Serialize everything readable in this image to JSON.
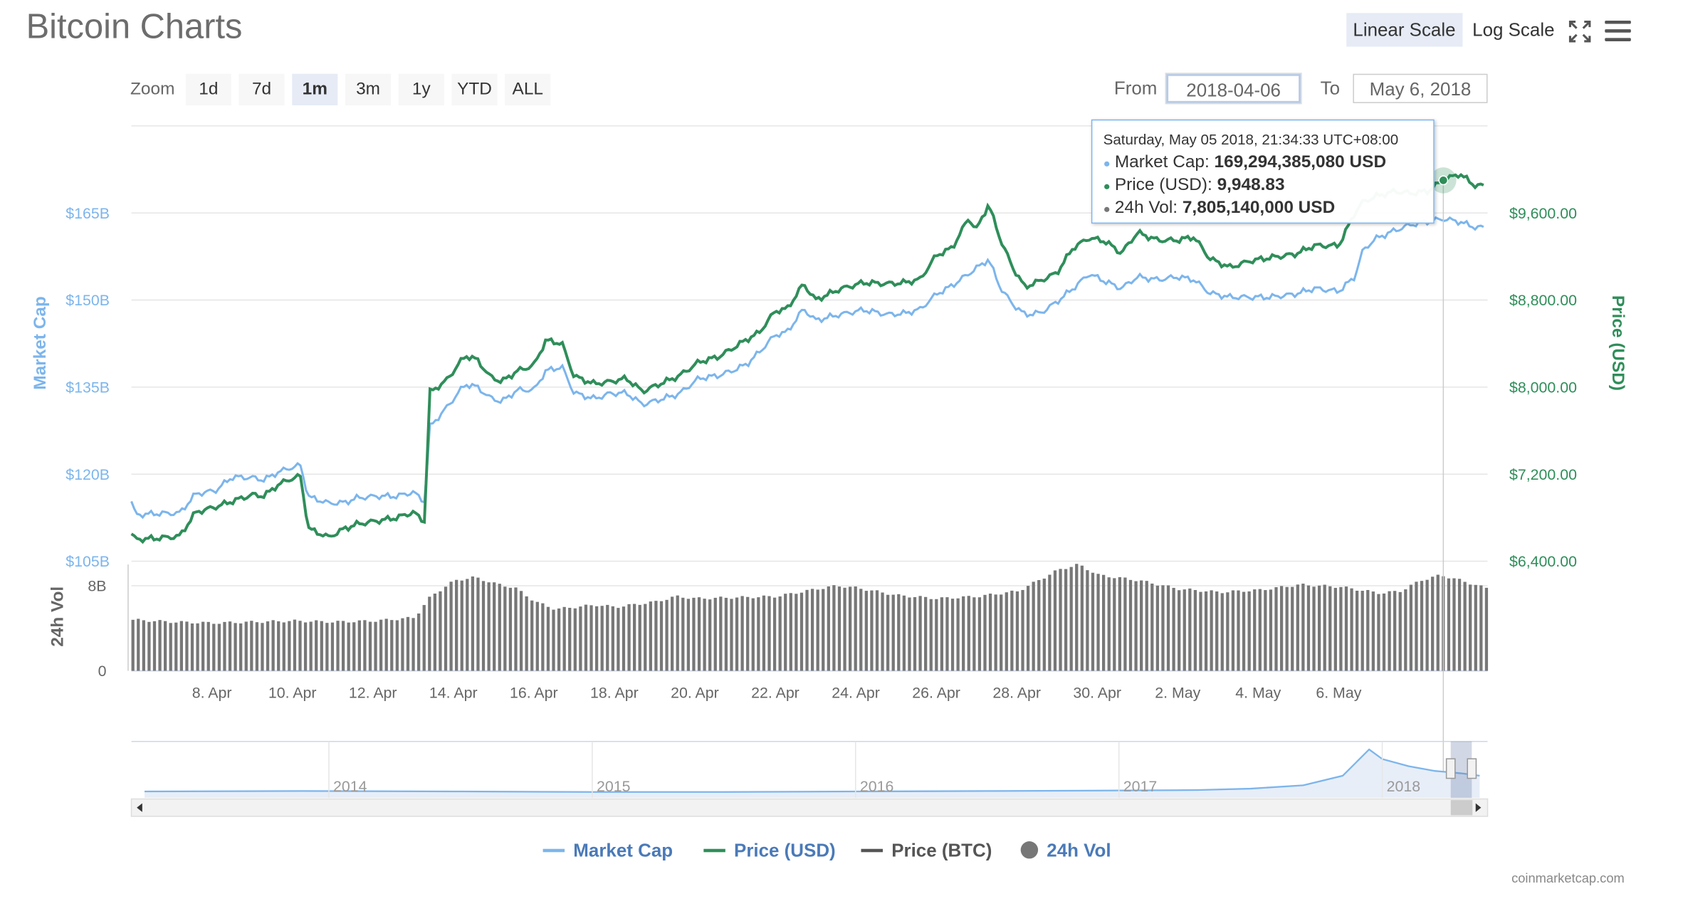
{
  "header": {
    "title": "Bitcoin Charts",
    "linear_scale_label": "Linear Scale",
    "log_scale_label": "Log Scale",
    "fullscreen_icon": "fullscreen-icon",
    "menu_icon": "hamburger-menu-icon"
  },
  "zoom": {
    "label": "Zoom",
    "buttons": [
      "1d",
      "7d",
      "1m",
      "3m",
      "1y",
      "YTD",
      "ALL"
    ],
    "active": "1m"
  },
  "range": {
    "from_label": "From",
    "from_value": "2018-04-06",
    "to_label": "To",
    "to_value": "May 6, 2018"
  },
  "tooltip": {
    "header": "Saturday, May 05 2018, 21:34:33 UTC+08:00",
    "rows": [
      {
        "label": "Market Cap: ",
        "value": "169,294,385,080 USD",
        "color": "#7cb5ec"
      },
      {
        "label": "Price (USD): ",
        "value": "9,948.83",
        "color": "#2f8e5a"
      },
      {
        "label": "24h Vol: ",
        "value": "7,805,140,000 USD",
        "color": "#777777"
      }
    ]
  },
  "legend": {
    "items": [
      {
        "name": "Market Cap",
        "color": "#7cb5ec"
      },
      {
        "name": "Price (USD)",
        "color": "#2f8e5a"
      },
      {
        "name": "Price (BTC)",
        "color": "#555555"
      },
      {
        "name": "24h Vol",
        "color": "#777777"
      }
    ]
  },
  "credit": "coinmarketcap.com",
  "colors": {
    "market_cap": "#7cb5ec",
    "price_usd": "#2f8e5a",
    "volume": "#777777",
    "navigator_fill": "#e8eef8"
  },
  "chart_data": {
    "type": "line",
    "x_start": "2018-04-06",
    "x_end": "2018-05-06",
    "x_tick_labels": [
      "8. Apr",
      "10. Apr",
      "12. Apr",
      "14. Apr",
      "16. Apr",
      "18. Apr",
      "20. Apr",
      "22. Apr",
      "24. Apr",
      "26. Apr",
      "28. Apr",
      "30. Apr",
      "2. May",
      "4. May",
      "6. May"
    ],
    "y_left": {
      "label": "Market Cap",
      "tick_labels": [
        "$105B",
        "$120B",
        "$135B",
        "$150B",
        "$165B"
      ],
      "ticks": [
        105,
        120,
        135,
        150,
        165
      ],
      "range": [
        105,
        180
      ]
    },
    "y_right": {
      "label": "Price (USD)",
      "tick_labels": [
        "$6,400.00",
        "$7,200.00",
        "$8,000.00",
        "$8,800.00",
        "$9,600.00"
      ],
      "ticks": [
        6400,
        7200,
        8000,
        8800,
        9600
      ],
      "range": [
        6400,
        10400
      ]
    },
    "volume_axis": {
      "label": "24h Vol",
      "tick_labels": [
        "0",
        "8B"
      ],
      "ticks": [
        0,
        8
      ],
      "range": [
        0,
        10
      ]
    },
    "series": [
      {
        "name": "Market Cap",
        "unit": "billion USD",
        "points": [
          [
            0,
            115.3
          ],
          [
            0.1,
            113
          ],
          [
            0.6,
            113.2
          ],
          [
            1.2,
            113.3
          ],
          [
            1.6,
            116.6
          ],
          [
            2.1,
            117.2
          ],
          [
            2.5,
            119.5
          ],
          [
            3.0,
            119.4
          ],
          [
            3.3,
            119
          ],
          [
            3.6,
            120.2
          ],
          [
            3.9,
            121
          ],
          [
            4.2,
            121.5
          ],
          [
            4.4,
            116.1
          ],
          [
            4.9,
            115
          ],
          [
            5.3,
            115.1
          ],
          [
            5.6,
            115.9
          ],
          [
            6.1,
            116.2
          ],
          [
            6.6,
            116.2
          ],
          [
            7.0,
            116.9
          ],
          [
            7.3,
            115.2
          ],
          [
            7.4,
            128
          ],
          [
            7.8,
            131.2
          ],
          [
            8.3,
            135.5
          ],
          [
            8.6,
            135
          ],
          [
            8.9,
            133.2
          ],
          [
            9.2,
            132.5
          ],
          [
            9.6,
            134.5
          ],
          [
            10.0,
            134.5
          ],
          [
            10.3,
            137.8
          ],
          [
            10.7,
            138.5
          ],
          [
            11.0,
            134
          ],
          [
            11.5,
            133
          ],
          [
            11.9,
            133.9
          ],
          [
            12.3,
            134
          ],
          [
            12.7,
            132
          ],
          [
            13.2,
            133
          ],
          [
            13.6,
            133.8
          ],
          [
            14.1,
            136.5
          ],
          [
            14.6,
            137
          ],
          [
            15.0,
            138
          ],
          [
            15.3,
            139
          ],
          [
            15.6,
            141
          ],
          [
            16.0,
            144
          ],
          [
            16.3,
            144.5
          ],
          [
            16.7,
            148.5
          ],
          [
            17.0,
            146.5
          ],
          [
            17.6,
            147.5
          ],
          [
            18.2,
            148.3
          ],
          [
            18.8,
            147.5
          ],
          [
            19.2,
            147.7
          ],
          [
            19.6,
            148.4
          ],
          [
            20.0,
            151
          ],
          [
            20.4,
            152.5
          ],
          [
            20.8,
            154.5
          ],
          [
            21.0,
            155.5
          ],
          [
            21.3,
            157
          ],
          [
            21.6,
            152
          ],
          [
            21.9,
            149.3
          ],
          [
            22.2,
            147.5
          ],
          [
            22.6,
            147.8
          ],
          [
            23.0,
            149.7
          ],
          [
            23.4,
            152
          ],
          [
            23.8,
            154.5
          ],
          [
            24.2,
            153.2
          ],
          [
            24.6,
            152
          ],
          [
            25.0,
            154
          ],
          [
            25.5,
            153.5
          ],
          [
            26.0,
            154
          ],
          [
            26.4,
            153.5
          ],
          [
            26.8,
            151.2
          ],
          [
            27.3,
            150.5
          ],
          [
            27.8,
            150.5
          ],
          [
            28.3,
            150.5
          ],
          [
            28.9,
            151
          ],
          [
            29.4,
            152
          ],
          [
            30.0,
            151.5
          ],
          [
            30.4,
            154
          ],
          [
            30.6,
            158.5
          ],
          [
            30.9,
            160.5
          ],
          [
            31.4,
            162
          ],
          [
            31.8,
            163
          ],
          [
            32.2,
            163.5
          ],
          [
            32.6,
            164
          ],
          [
            33.0,
            163.5
          ],
          [
            33.4,
            162.5
          ]
        ]
      },
      {
        "name": "Price (USD)",
        "unit": "USD",
        "points": [
          [
            0,
            6650
          ],
          [
            0.1,
            6600
          ],
          [
            0.6,
            6610
          ],
          [
            1.2,
            6630
          ],
          [
            1.6,
            6850
          ],
          [
            2.1,
            6900
          ],
          [
            2.5,
            6950
          ],
          [
            3.0,
            7010
          ],
          [
            3.3,
            7000
          ],
          [
            3.6,
            7090
          ],
          [
            3.9,
            7150
          ],
          [
            4.2,
            7180
          ],
          [
            4.4,
            6700
          ],
          [
            4.9,
            6620
          ],
          [
            5.3,
            6700
          ],
          [
            5.6,
            6740
          ],
          [
            6.1,
            6770
          ],
          [
            6.6,
            6800
          ],
          [
            7.0,
            6850
          ],
          [
            7.3,
            6760
          ],
          [
            7.4,
            7950
          ],
          [
            7.8,
            8050
          ],
          [
            8.3,
            8290
          ],
          [
            8.6,
            8250
          ],
          [
            8.9,
            8100
          ],
          [
            9.2,
            8050
          ],
          [
            9.6,
            8150
          ],
          [
            10.0,
            8200
          ],
          [
            10.3,
            8430
          ],
          [
            10.7,
            8400
          ],
          [
            11.0,
            8100
          ],
          [
            11.5,
            8030
          ],
          [
            11.9,
            8050
          ],
          [
            12.3,
            8080
          ],
          [
            12.7,
            7960
          ],
          [
            13.2,
            8040
          ],
          [
            13.6,
            8100
          ],
          [
            14.1,
            8230
          ],
          [
            14.6,
            8280
          ],
          [
            15.0,
            8370
          ],
          [
            15.3,
            8440
          ],
          [
            15.6,
            8500
          ],
          [
            16.0,
            8700
          ],
          [
            16.3,
            8720
          ],
          [
            16.7,
            8950
          ],
          [
            17.0,
            8800
          ],
          [
            17.6,
            8900
          ],
          [
            18.2,
            8960
          ],
          [
            18.8,
            8950
          ],
          [
            19.2,
            8960
          ],
          [
            19.6,
            8990
          ],
          [
            20.0,
            9210
          ],
          [
            20.4,
            9280
          ],
          [
            20.8,
            9550
          ],
          [
            21.0,
            9450
          ],
          [
            21.3,
            9680
          ],
          [
            21.6,
            9350
          ],
          [
            21.9,
            9100
          ],
          [
            22.2,
            8920
          ],
          [
            22.6,
            8980
          ],
          [
            23.0,
            9050
          ],
          [
            23.4,
            9280
          ],
          [
            23.8,
            9370
          ],
          [
            24.2,
            9340
          ],
          [
            24.6,
            9230
          ],
          [
            25.0,
            9420
          ],
          [
            25.5,
            9350
          ],
          [
            26.0,
            9350
          ],
          [
            26.4,
            9380
          ],
          [
            26.8,
            9180
          ],
          [
            27.3,
            9100
          ],
          [
            27.8,
            9160
          ],
          [
            28.3,
            9190
          ],
          [
            28.9,
            9220
          ],
          [
            29.4,
            9300
          ],
          [
            30.0,
            9300
          ],
          [
            30.4,
            9600
          ],
          [
            30.6,
            9700
          ],
          [
            30.9,
            9750
          ],
          [
            31.4,
            9800
          ],
          [
            31.8,
            9780
          ],
          [
            32.2,
            9800
          ],
          [
            32.6,
            9900
          ],
          [
            33.0,
            9960
          ],
          [
            33.4,
            9850
          ]
        ]
      },
      {
        "name": "24h Vol",
        "unit": "billion USD",
        "points": [
          [
            0,
            4.8
          ],
          [
            1,
            4.6
          ],
          [
            2,
            4.5
          ],
          [
            3,
            4.6
          ],
          [
            4,
            4.7
          ],
          [
            5,
            4.6
          ],
          [
            6,
            4.7
          ],
          [
            7,
            5.0
          ],
          [
            7.4,
            7.0
          ],
          [
            8,
            8.5
          ],
          [
            8.5,
            8.8
          ],
          [
            9,
            8.2
          ],
          [
            9.5,
            7.8
          ],
          [
            10,
            6.5
          ],
          [
            10.5,
            5.8
          ],
          [
            11,
            6.0
          ],
          [
            11.5,
            6.2
          ],
          [
            12,
            6.0
          ],
          [
            13,
            6.5
          ],
          [
            13.5,
            7.0
          ],
          [
            14,
            6.8
          ],
          [
            15,
            6.9
          ],
          [
            16,
            7.0
          ],
          [
            17,
            7.7
          ],
          [
            17.5,
            8.0
          ],
          [
            18,
            7.8
          ],
          [
            19,
            7.1
          ],
          [
            20,
            6.8
          ],
          [
            21,
            7.0
          ],
          [
            22,
            7.5
          ],
          [
            22.5,
            8.5
          ],
          [
            23,
            9.5
          ],
          [
            23.5,
            10.0
          ],
          [
            24,
            9.0
          ],
          [
            25,
            8.5
          ],
          [
            26,
            7.7
          ],
          [
            27,
            7.4
          ],
          [
            28,
            7.6
          ],
          [
            29,
            8.1
          ],
          [
            30,
            7.9
          ],
          [
            31,
            7.3
          ],
          [
            31.5,
            7.5
          ],
          [
            32,
            8.5
          ],
          [
            32.5,
            9.0
          ],
          [
            33,
            8.5
          ],
          [
            33.6,
            7.8
          ]
        ]
      }
    ],
    "tooltip_x": 32.6,
    "navigator": {
      "year_labels": [
        "2014",
        "2015",
        "2016",
        "2017",
        "2018"
      ],
      "points": [
        [
          2013.3,
          0.02
        ],
        [
          2013.9,
          0.03
        ],
        [
          2014.5,
          0.02
        ],
        [
          2015.0,
          0.01
        ],
        [
          2015.5,
          0.01
        ],
        [
          2016.0,
          0.02
        ],
        [
          2016.5,
          0.03
        ],
        [
          2017.0,
          0.04
        ],
        [
          2017.3,
          0.05
        ],
        [
          2017.5,
          0.08
        ],
        [
          2017.7,
          0.15
        ],
        [
          2017.85,
          0.35
        ],
        [
          2017.95,
          0.9
        ],
        [
          2018.0,
          0.7
        ],
        [
          2018.1,
          0.55
        ],
        [
          2018.2,
          0.45
        ],
        [
          2018.3,
          0.4
        ],
        [
          2018.37,
          0.35
        ]
      ],
      "window": [
        "2018-04-06",
        "2018-05-06"
      ]
    }
  }
}
